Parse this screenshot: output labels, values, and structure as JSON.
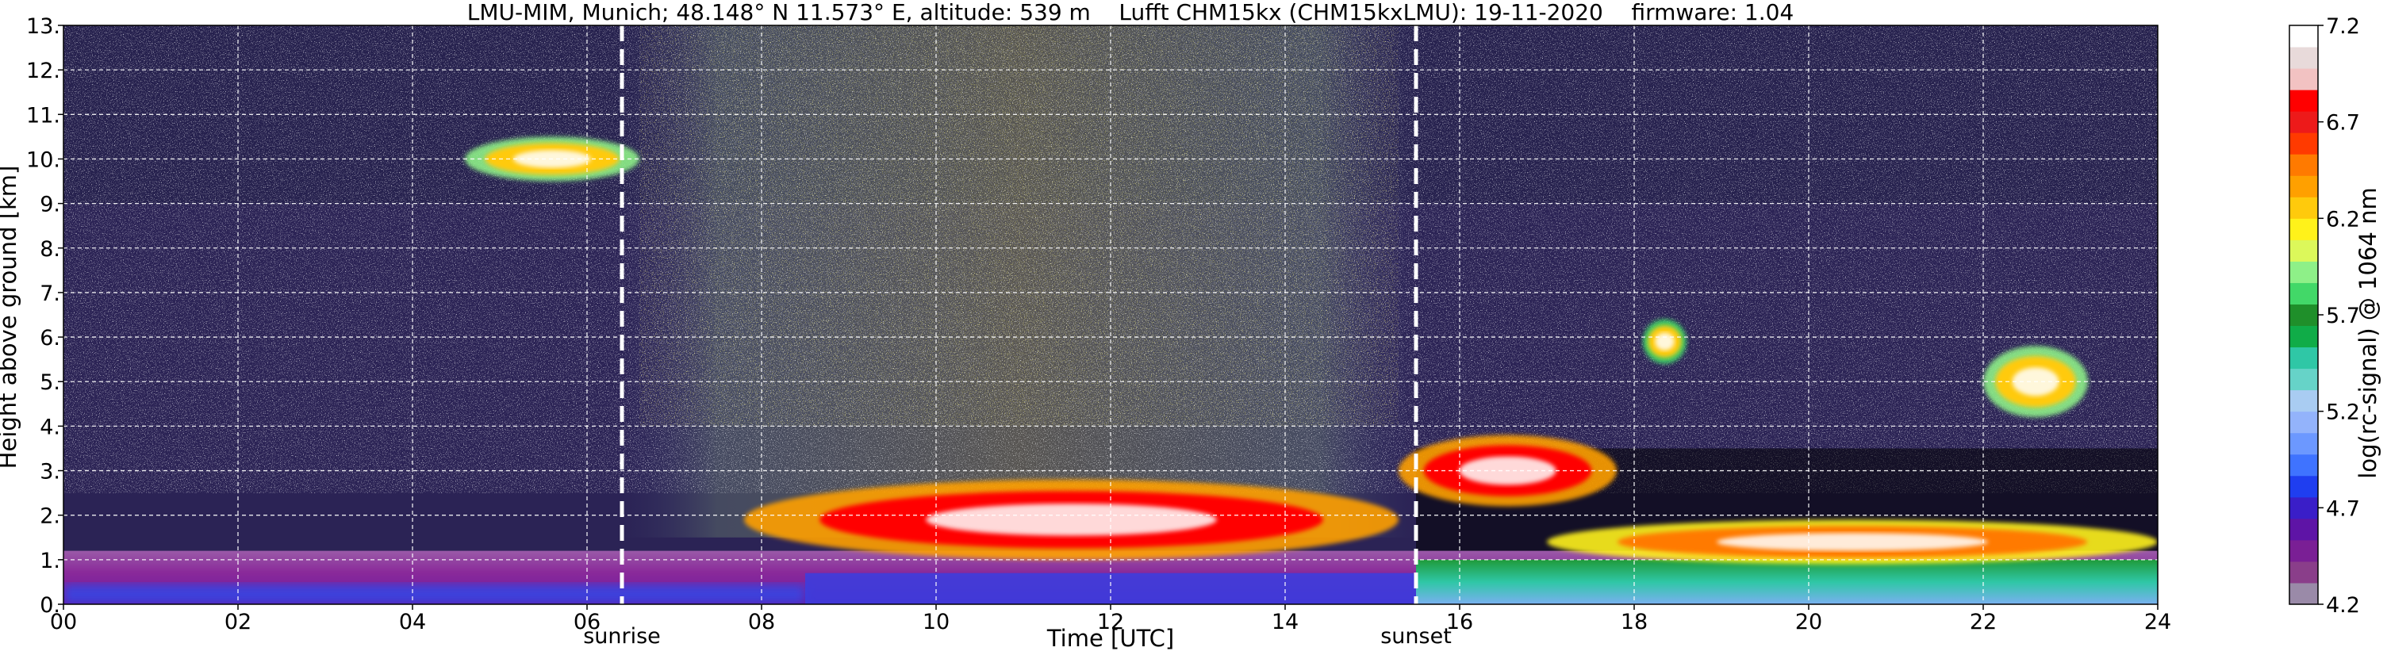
{
  "chart_data": {
    "type": "heatmap",
    "title": "LMU-MIM, Munich; 48.148° N 11.573° E, altitude: 539 m    Lufft CHM15kx (CHM15kxLMU): 19-11-2020    firmware: 1.04",
    "xlabel": "Time [UTC]",
    "ylabel": "Height above ground [km]",
    "xlim": [
      0,
      24
    ],
    "ylim": [
      0,
      13
    ],
    "x_ticks": [
      0,
      2,
      4,
      6,
      8,
      10,
      12,
      14,
      16,
      18,
      20,
      22,
      24
    ],
    "x_tick_labels": [
      "00",
      "02",
      "04",
      "06",
      "08",
      "10",
      "12",
      "14",
      "16",
      "18",
      "20",
      "22",
      "24"
    ],
    "y_ticks": [
      0,
      1,
      2,
      3,
      4,
      5,
      6,
      7,
      8,
      9,
      10,
      11,
      12,
      13
    ],
    "y_tick_labels": [
      "0.",
      "1.",
      "2.",
      "3.",
      "4.",
      "5.",
      "6.",
      "7.",
      "8.",
      "9.",
      "10.",
      "11.",
      "12.",
      "13."
    ],
    "grid": true,
    "markers": [
      {
        "label": "sunrise",
        "x": 6.4
      },
      {
        "label": "sunset",
        "x": 15.5
      }
    ],
    "colorbar": {
      "label": "log(rc-signal) @ 1064 nm",
      "range": [
        4.2,
        7.2
      ],
      "ticks": [
        4.2,
        4.7,
        5.2,
        5.7,
        6.2,
        6.7,
        7.2
      ],
      "tick_labels": [
        "4.2",
        "4.7",
        "5.2",
        "5.7",
        "6.2",
        "6.7",
        "7.2"
      ],
      "colors": [
        "#9a8aa8",
        "#8a3e8a",
        "#7a1f95",
        "#5e14a6",
        "#3a1ec8",
        "#1f3ef0",
        "#3f73ff",
        "#6c98ff",
        "#93b3fb",
        "#a9ccf2",
        "#66d3c8",
        "#2fc7a6",
        "#10ac48",
        "#1f8f2a",
        "#42d868",
        "#8ef088",
        "#dcf85a",
        "#fff21a",
        "#ffca0c",
        "#ffa000",
        "#ff7a00",
        "#ff3a00",
        "#ed1a1a",
        "#ff0000",
        "#f2c2c2",
        "#e8dada",
        "#ffffff"
      ]
    },
    "features": [
      {
        "name": "boundary layer",
        "x": [
          0,
          24
        ],
        "y": [
          0,
          1.2
        ],
        "level": 4.5
      },
      {
        "name": "upper cloud",
        "x": [
          4.6,
          6.6
        ],
        "y": [
          9.5,
          10.5
        ],
        "level": 6.3
      },
      {
        "name": "cloud layer",
        "x": [
          7.8,
          15.3
        ],
        "y": [
          1.0,
          2.8
        ],
        "level": 6.8
      },
      {
        "name": "cloud layer",
        "x": [
          15.3,
          17.8
        ],
        "y": [
          2.2,
          3.8
        ],
        "level": 6.8
      },
      {
        "name": "cloud layer",
        "x": [
          17.0,
          24
        ],
        "y": [
          0.9,
          1.9
        ],
        "level": 6.5
      },
      {
        "name": "cloud",
        "x": [
          18.1,
          18.6
        ],
        "y": [
          5.4,
          6.4
        ],
        "level": 6.2
      },
      {
        "name": "cloud",
        "x": [
          22.0,
          23.2
        ],
        "y": [
          4.2,
          5.8
        ],
        "level": 6.3
      }
    ]
  }
}
